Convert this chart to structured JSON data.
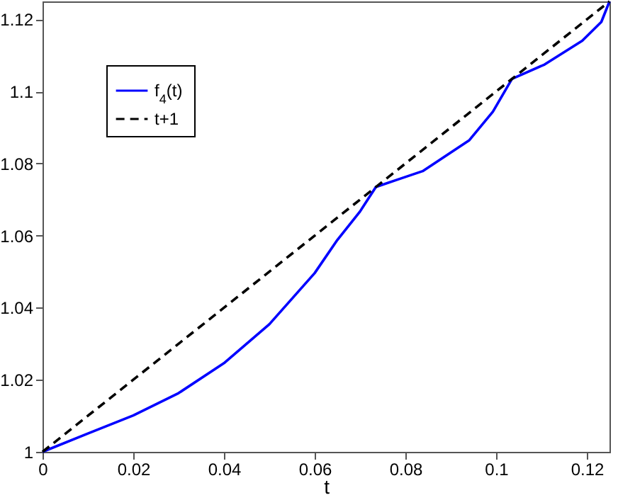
{
  "chart_data": {
    "type": "line",
    "xlabel": "t",
    "xlim": [
      0,
      0.125
    ],
    "ylim": [
      1,
      1.125
    ],
    "xticks": [
      0,
      0.02,
      0.04,
      0.06,
      0.08,
      0.1,
      0.12
    ],
    "yticks": [
      1,
      1.02,
      1.04,
      1.06,
      1.08,
      1.1,
      1.12
    ],
    "grid": false,
    "legend": "top left",
    "marker": "none",
    "series": [
      {
        "name": "f$_{4}$(t)",
        "color": "#0000ff",
        "line_style": "solid",
        "x": [
          0,
          0.01,
          0.02,
          0.03,
          0.04,
          0.05,
          0.06,
          0.065,
          0.07,
          0.0735,
          0.0786,
          0.0838,
          0.0941,
          0.0993,
          0.1035,
          0.1107,
          0.119,
          0.1232,
          0.125
        ],
        "values": [
          1,
          1.0051,
          1.0101,
          1.0163,
          1.0246,
          1.0354,
          1.0496,
          1.0588,
          1.0667,
          1.0735,
          1.0757,
          1.0779,
          1.0865,
          1.0944,
          1.1035,
          1.1075,
          1.1141,
          1.1193,
          1.125
        ]
      },
      {
        "name": "t+1",
        "color": "#000000",
        "line_style": "dashed",
        "x": [
          0,
          0.125
        ],
        "values": [
          1,
          1.125
        ]
      }
    ]
  }
}
